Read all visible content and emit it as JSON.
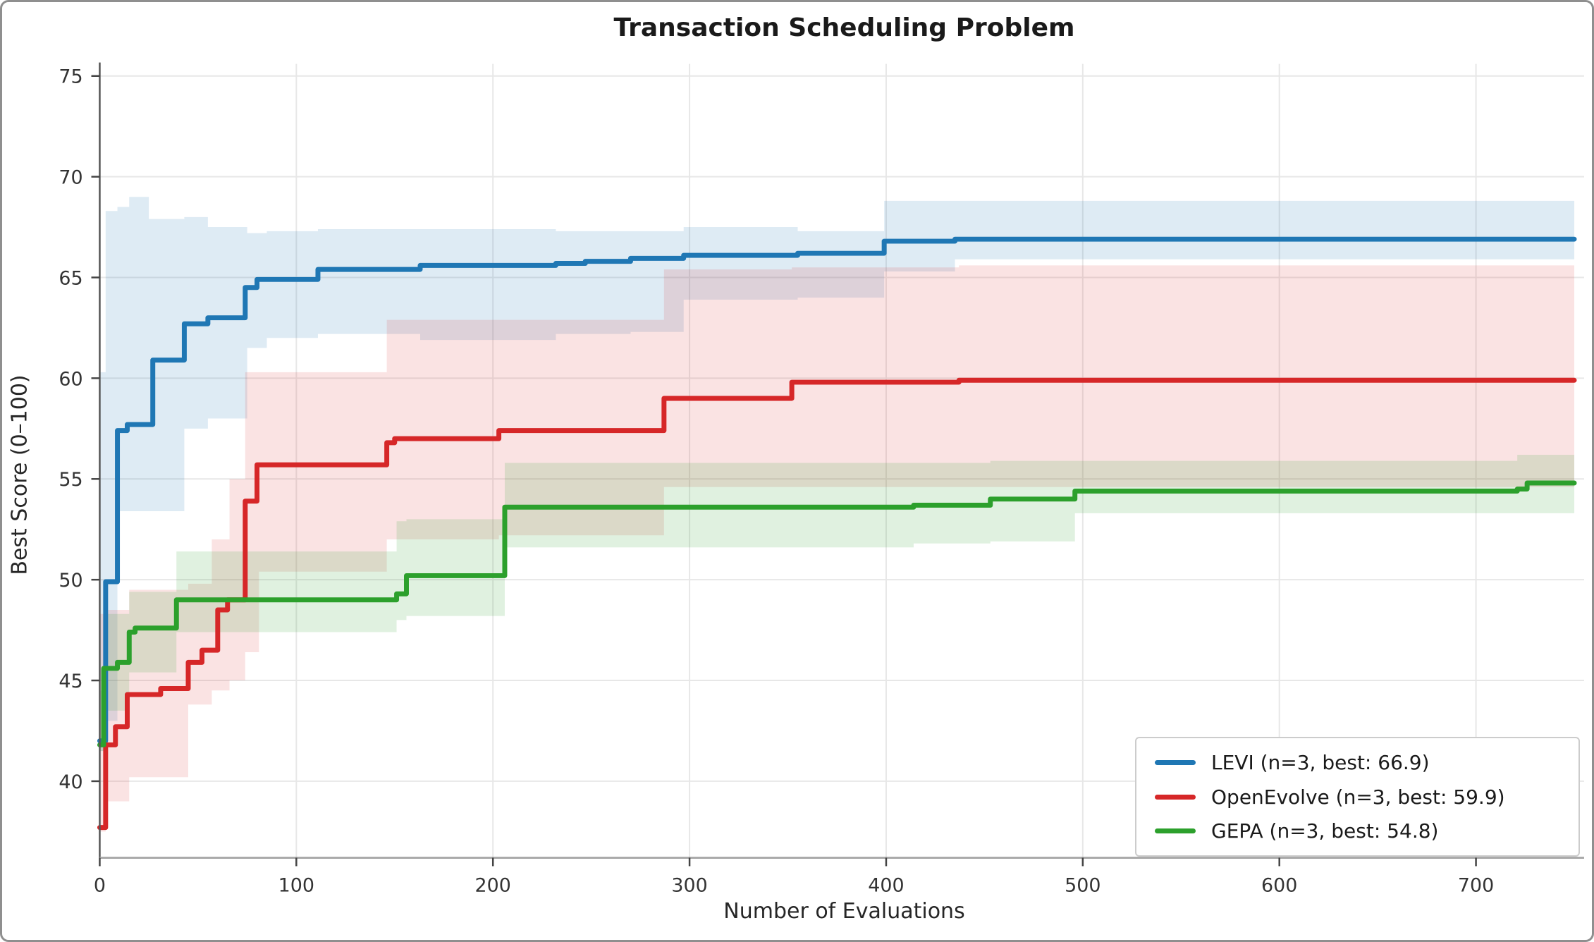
{
  "window": {
    "frame_color": "#8f8f8f",
    "background": "#ffffff"
  },
  "chart_data": {
    "type": "line",
    "subtype": "step-post",
    "title": "Transaction Scheduling Problem",
    "xlabel": "Number of Evaluations",
    "ylabel": "Best Score (0–100)",
    "xlim": [
      0,
      755
    ],
    "ylim": [
      36.2,
      75.6
    ],
    "x_ticks": [
      0,
      100,
      200,
      300,
      400,
      500,
      600,
      700
    ],
    "y_ticks": [
      40,
      45,
      50,
      55,
      60,
      65,
      70,
      75
    ],
    "grid": true,
    "grid_color": "#e7e7e7",
    "spine_color": "#555555",
    "tick_color": "#444444",
    "legend_position": "lower right",
    "series": [
      {
        "name": "LEVI",
        "legend_label": "LEVI (n=3, best: 66.9)",
        "n": 3,
        "best": 66.9,
        "color": "#1f77b4",
        "band_opacity": 0.15,
        "steps": [
          [
            0,
            42.0
          ],
          [
            3,
            49.9
          ],
          [
            9,
            57.4
          ],
          [
            14,
            57.7
          ],
          [
            27,
            60.9
          ],
          [
            43,
            62.7
          ],
          [
            55,
            63.0
          ],
          [
            74,
            64.5
          ],
          [
            80,
            64.9
          ],
          [
            111,
            65.4
          ],
          [
            163,
            65.6
          ],
          [
            232,
            65.7
          ],
          [
            247,
            65.8
          ],
          [
            270,
            65.95
          ],
          [
            297,
            66.1
          ],
          [
            355,
            66.2
          ],
          [
            399,
            66.8
          ],
          [
            435,
            66.9
          ],
          [
            750,
            66.9
          ]
        ],
        "band": {
          "x": [
            0,
            3,
            9,
            15,
            25,
            43,
            55,
            75,
            85,
            111,
            163,
            232,
            270,
            297,
            355,
            399,
            435,
            750
          ],
          "hi": [
            60.3,
            68.3,
            68.5,
            69.0,
            67.9,
            68.0,
            67.5,
            67.2,
            67.3,
            67.4,
            67.4,
            67.3,
            67.3,
            67.5,
            67.3,
            68.8,
            68.8,
            68.8
          ],
          "lo": [
            41.5,
            43.0,
            53.4,
            53.4,
            53.4,
            57.5,
            58.0,
            61.5,
            62.0,
            62.2,
            61.9,
            62.2,
            62.3,
            63.9,
            64.0,
            65.3,
            65.9,
            65.9
          ]
        }
      },
      {
        "name": "OpenEvolve",
        "legend_label": "OpenEvolve (n=3, best: 59.9)",
        "n": 3,
        "best": 59.9,
        "color": "#d62728",
        "band_opacity": 0.13,
        "steps": [
          [
            0,
            37.7
          ],
          [
            3,
            41.8
          ],
          [
            8,
            42.7
          ],
          [
            14,
            44.3
          ],
          [
            31,
            44.6
          ],
          [
            45,
            45.9
          ],
          [
            52,
            46.5
          ],
          [
            60,
            48.5
          ],
          [
            65,
            49.0
          ],
          [
            74,
            53.9
          ],
          [
            80,
            55.7
          ],
          [
            146,
            56.8
          ],
          [
            150,
            57.0
          ],
          [
            203,
            57.4
          ],
          [
            287,
            59.0
          ],
          [
            352,
            59.8
          ],
          [
            437,
            59.9
          ],
          [
            750,
            59.9
          ]
        ],
        "band": {
          "x": [
            0,
            3,
            15,
            45,
            57,
            66,
            74,
            81,
            146,
            203,
            287,
            352,
            437,
            750
          ],
          "hi": [
            48.3,
            48.5,
            49.5,
            49.8,
            52.0,
            55.0,
            60.3,
            60.3,
            62.9,
            62.9,
            65.4,
            65.5,
            65.6,
            65.6
          ],
          "lo": [
            37.5,
            39.0,
            40.2,
            43.8,
            44.5,
            45.0,
            46.4,
            50.4,
            52.0,
            52.2,
            54.6,
            54.6,
            54.6,
            54.6
          ]
        }
      },
      {
        "name": "GEPA",
        "legend_label": "GEPA (n=3, best: 54.8)",
        "n": 3,
        "best": 54.8,
        "color": "#2ca02c",
        "band_opacity": 0.15,
        "steps": [
          [
            0,
            41.8
          ],
          [
            2,
            45.6
          ],
          [
            9,
            45.9
          ],
          [
            15,
            47.4
          ],
          [
            18,
            47.6
          ],
          [
            39,
            49.0
          ],
          [
            151,
            49.3
          ],
          [
            156,
            50.2
          ],
          [
            206,
            53.6
          ],
          [
            414,
            53.7
          ],
          [
            453,
            54.0
          ],
          [
            496,
            54.4
          ],
          [
            721,
            54.5
          ],
          [
            726,
            54.8
          ],
          [
            750,
            54.8
          ]
        ],
        "band": {
          "x": [
            0,
            2,
            15,
            39,
            151,
            156,
            206,
            414,
            453,
            496,
            721,
            750
          ],
          "hi": [
            44.5,
            48.3,
            49.4,
            51.4,
            52.9,
            53.0,
            55.8,
            55.8,
            55.9,
            55.9,
            56.2,
            56.2
          ],
          "lo": [
            41.5,
            43.5,
            45.4,
            47.4,
            48.0,
            48.2,
            51.6,
            51.8,
            51.9,
            53.3,
            53.3,
            53.3
          ]
        }
      }
    ]
  }
}
